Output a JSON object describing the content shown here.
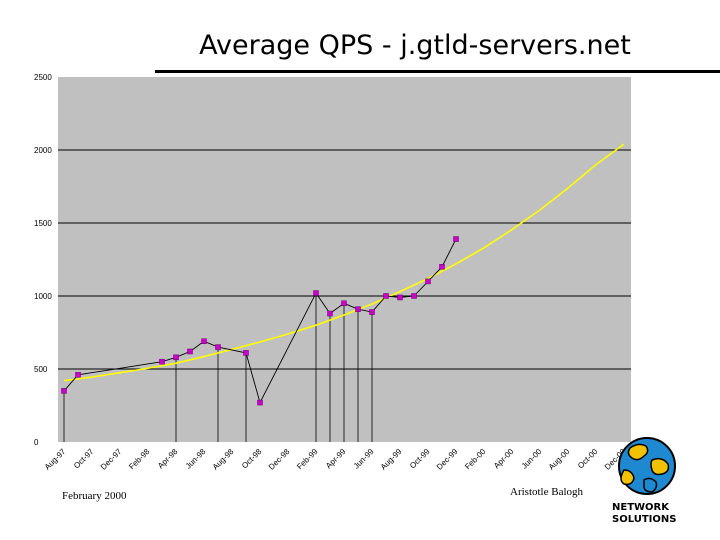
{
  "slide": {
    "title": "Average QPS - j.gtld-servers.net",
    "footer_left": "February 2000",
    "footer_right": "Aristotle Balogh",
    "logo_line1": "NETWORK",
    "logo_line2": "SOLUTIONS"
  },
  "chart_data": {
    "type": "line",
    "title": "",
    "xlabel": "",
    "ylabel": "",
    "ylim": [
      0,
      2500
    ],
    "yticks": [
      0,
      500,
      1000,
      1500,
      2000,
      2500
    ],
    "ytick_labels": [
      "0",
      "500",
      "1000",
      "1500",
      "2000",
      "2500"
    ],
    "xtick_labels": [
      "Aug-97",
      "Oct-97",
      "Dec-97",
      "Feb-98",
      "Apr-98",
      "Jun-98",
      "Aug-98",
      "Oct-98",
      "Dec-98",
      "Feb-99",
      "Apr-99",
      "Jun-99",
      "Aug-99",
      "Oct-99",
      "Dec-99",
      "Feb-00",
      "Apr-00",
      "Jun-00",
      "Aug-00",
      "Oct-00",
      "Dec-00"
    ],
    "grid": true,
    "plot_background": "#c0c0c0",
    "series": [
      {
        "kind": "points",
        "color": "#000000",
        "marker_color": "#cc00cc",
        "x": [
          0.0,
          0.5,
          3.5,
          4.0,
          4.5,
          5.0,
          5.5,
          6.5,
          7.0,
          9.0,
          9.5,
          10.0,
          10.5,
          11.0,
          11.5,
          12.0,
          12.5,
          13.0,
          13.5,
          14.0
        ],
        "y": [
          350,
          460,
          550,
          580,
          620,
          690,
          650,
          610,
          270,
          1020,
          880,
          950,
          910,
          890,
          1000,
          990,
          1000,
          1100,
          1200,
          1390
        ]
      },
      {
        "kind": "trend",
        "color": "#ffff00",
        "x": [
          0,
          1,
          2,
          3,
          4,
          5,
          6,
          7,
          8,
          9,
          10,
          11,
          12,
          13,
          14,
          15,
          16,
          17,
          18,
          19,
          20
        ],
        "y": [
          420,
          445,
          475,
          505,
          540,
          585,
          635,
          685,
          740,
          800,
          870,
          945,
          1030,
          1120,
          1220,
          1330,
          1455,
          1590,
          1740,
          1900,
          2040
        ]
      }
    ],
    "drop_lines_at_points": [
      0,
      3,
      6,
      7,
      9,
      10,
      11,
      12,
      13
    ]
  }
}
